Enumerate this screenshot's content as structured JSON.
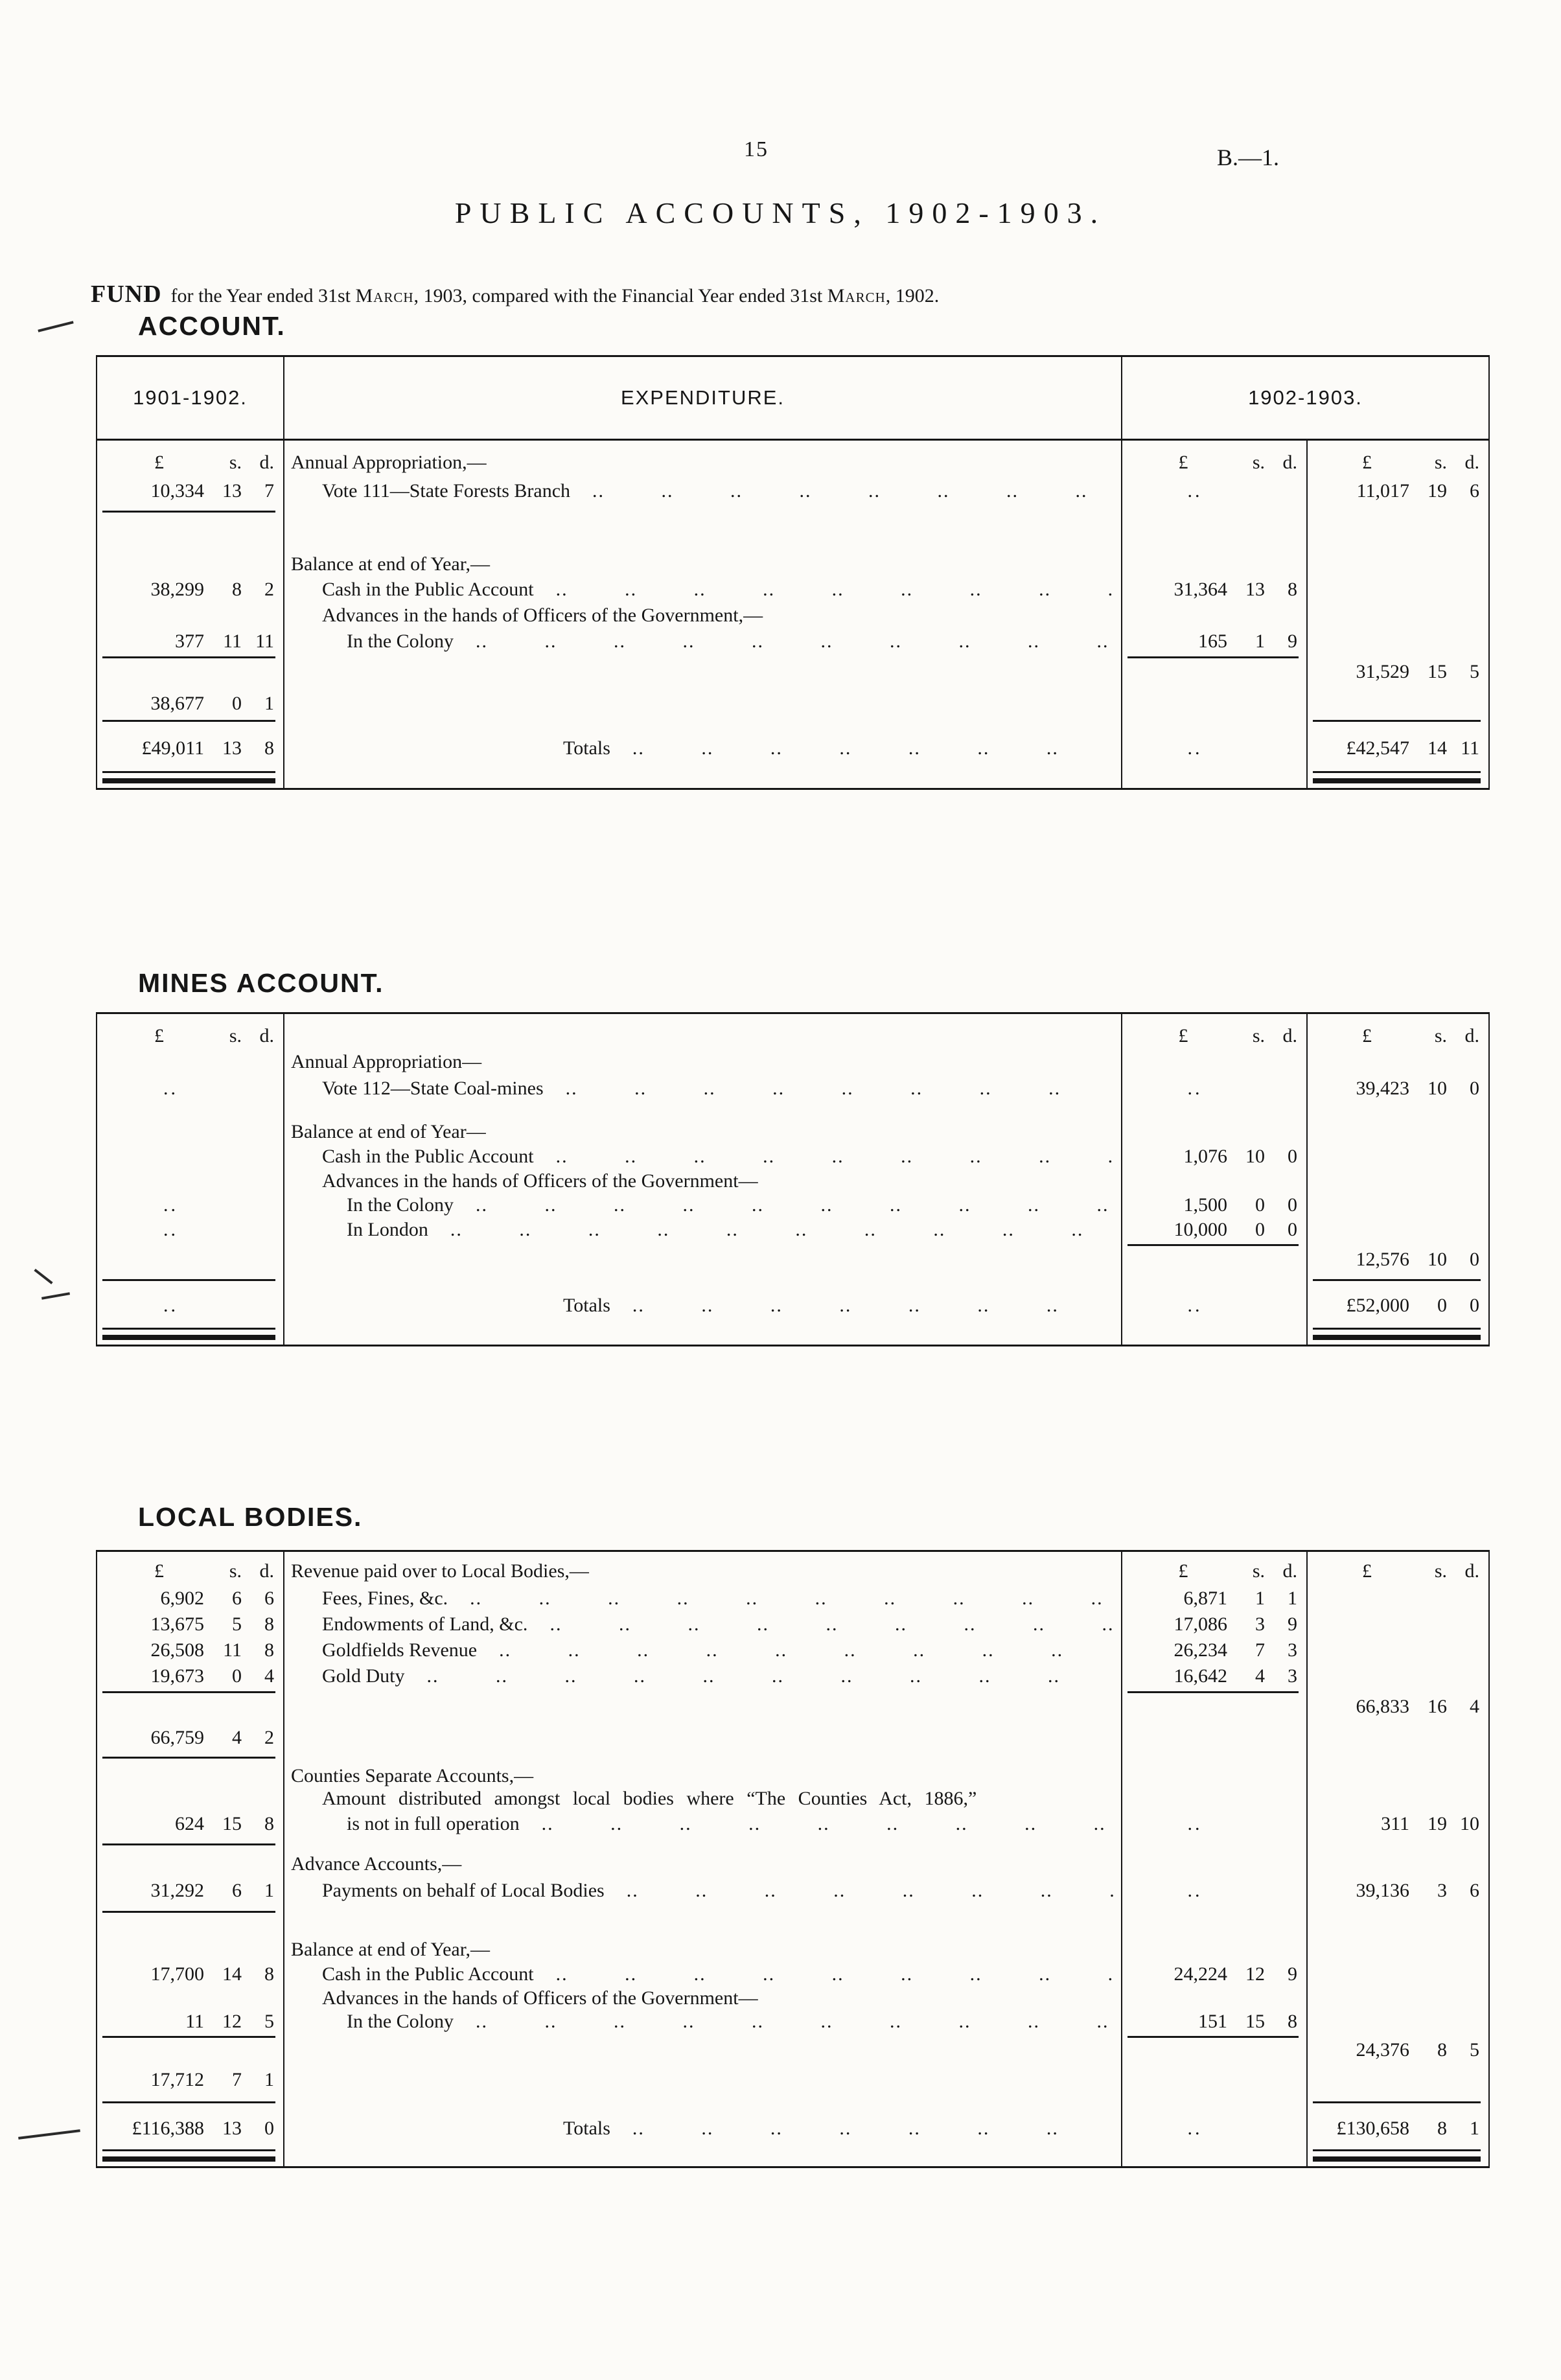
{
  "page": {
    "number": "15",
    "doc_ref": "B.—1.",
    "title": "PUBLIC ACCOUNTS, 1902-1903.",
    "heading_bold": "FUND",
    "heading_rest_1": "for the Year ended 31st ",
    "heading_month_1": "March",
    "heading_rest_2": ", 1903, compared with the Financial Year ended 31st ",
    "heading_month_2": "March",
    "heading_rest_3": ", 1902.",
    "heading_line2": "ACCOUNT."
  },
  "ui": {
    "leader_dots": ".. .. .. .. .. .. .. .. .. .. .. .. .. ..",
    "placeholder": "..",
    "lsd": [
      "£",
      "s.",
      "d."
    ]
  },
  "fund_account": {
    "columns": {
      "prev_year": "1901-1902.",
      "expenditure": "EXPENDITURE.",
      "current_year": "1902-1903."
    },
    "annual_appropriation_heading": "Annual Appropriation,—",
    "vote111": {
      "label": "Vote 111—State Forests Branch",
      "prev": [
        "10,334",
        "13",
        "7"
      ],
      "cur": [
        "11,017",
        "19",
        "6"
      ]
    },
    "balance_heading": "Balance at end of Year,—",
    "cash": {
      "label": "Cash in the Public Account",
      "prev": [
        "38,299",
        "8",
        "2"
      ],
      "cur_inner": [
        "31,364",
        "13",
        "8"
      ]
    },
    "advances_heading": "Advances in the hands of Officers of the Government,—",
    "colony": {
      "label": "In the Colony",
      "prev": [
        "377",
        "11",
        "11"
      ],
      "cur_inner": [
        "165",
        "1",
        "9"
      ]
    },
    "balance_cur_total": [
      "31,529",
      "15",
      "5"
    ],
    "balance_prev_total": [
      "38,677",
      "0",
      "1"
    ],
    "totals_label": "Totals",
    "totals_prev": [
      "£49,011",
      "13",
      "8"
    ],
    "totals_cur": [
      "£42,547",
      "14",
      "11"
    ]
  },
  "mines_account": {
    "heading": "MINES ACCOUNT.",
    "annual_appropriation_heading": "Annual Appropriation—",
    "vote112": {
      "label": "Vote 112—State Coal-mines",
      "cur": [
        "39,423",
        "10",
        "0"
      ]
    },
    "balance_heading": "Balance at end of Year—",
    "cash": {
      "label": "Cash in the Public Account",
      "cur_inner": [
        "1,076",
        "10",
        "0"
      ]
    },
    "advances_heading": "Advances in the hands of Officers of the Government—",
    "colony": {
      "label": "In the Colony",
      "cur_inner": [
        "1,500",
        "0",
        "0"
      ]
    },
    "london": {
      "label": "In London",
      "cur_inner": [
        "10,000",
        "0",
        "0"
      ]
    },
    "balance_cur_total": [
      "12,576",
      "10",
      "0"
    ],
    "totals_label": "Totals",
    "totals_cur": [
      "£52,000",
      "0",
      "0"
    ]
  },
  "local_bodies": {
    "heading": "LOCAL BODIES.",
    "revenue_heading": "Revenue paid over to Local Bodies,—",
    "fees": {
      "label": "Fees, Fines, &c.",
      "prev": [
        "6,902",
        "6",
        "6"
      ],
      "cur_inner": [
        "6,871",
        "1",
        "1"
      ]
    },
    "endowments": {
      "label": "Endowments of Land, &c.",
      "prev": [
        "13,675",
        "5",
        "8"
      ],
      "cur_inner": [
        "17,086",
        "3",
        "9"
      ]
    },
    "goldfields": {
      "label": "Goldfields Revenue",
      "prev": [
        "26,508",
        "11",
        "8"
      ],
      "cur_inner": [
        "26,234",
        "7",
        "3"
      ]
    },
    "gold_duty": {
      "label": "Gold Duty",
      "prev": [
        "19,673",
        "0",
        "4"
      ],
      "cur_inner": [
        "16,642",
        "4",
        "3"
      ]
    },
    "revenue_cur_total": [
      "66,833",
      "16",
      "4"
    ],
    "revenue_prev_total": [
      "66,759",
      "4",
      "2"
    ],
    "counties_heading": "Counties Separate Accounts,—",
    "counties_line1": "Amount distributed amongst local bodies where “The Counties Act, 1886,”",
    "counties_line2": "is not in full operation",
    "counties": {
      "prev": [
        "624",
        "15",
        "8"
      ],
      "cur": [
        "311",
        "19",
        "10"
      ]
    },
    "advance_heading": "Advance Accounts,—",
    "payments": {
      "label": "Payments on behalf of Local Bodies",
      "prev": [
        "31,292",
        "6",
        "1"
      ],
      "cur": [
        "39,136",
        "3",
        "6"
      ]
    },
    "balance_heading": "Balance at end of Year,—",
    "cash": {
      "label": "Cash in the Public Account",
      "prev": [
        "17,700",
        "14",
        "8"
      ],
      "cur_inner": [
        "24,224",
        "12",
        "9"
      ]
    },
    "advances_heading": "Advances in the hands of Officers of the Government—",
    "colony": {
      "label": "In the Colony",
      "prev": [
        "11",
        "12",
        "5"
      ],
      "cur_inner": [
        "151",
        "15",
        "8"
      ]
    },
    "balance_cur_total": [
      "24,376",
      "8",
      "5"
    ],
    "balance_prev_total": [
      "17,712",
      "7",
      "1"
    ],
    "totals_label": "Totals",
    "totals_prev": [
      "£116,388",
      "13",
      "0"
    ],
    "totals_cur": [
      "£130,658",
      "8",
      "1"
    ]
  }
}
